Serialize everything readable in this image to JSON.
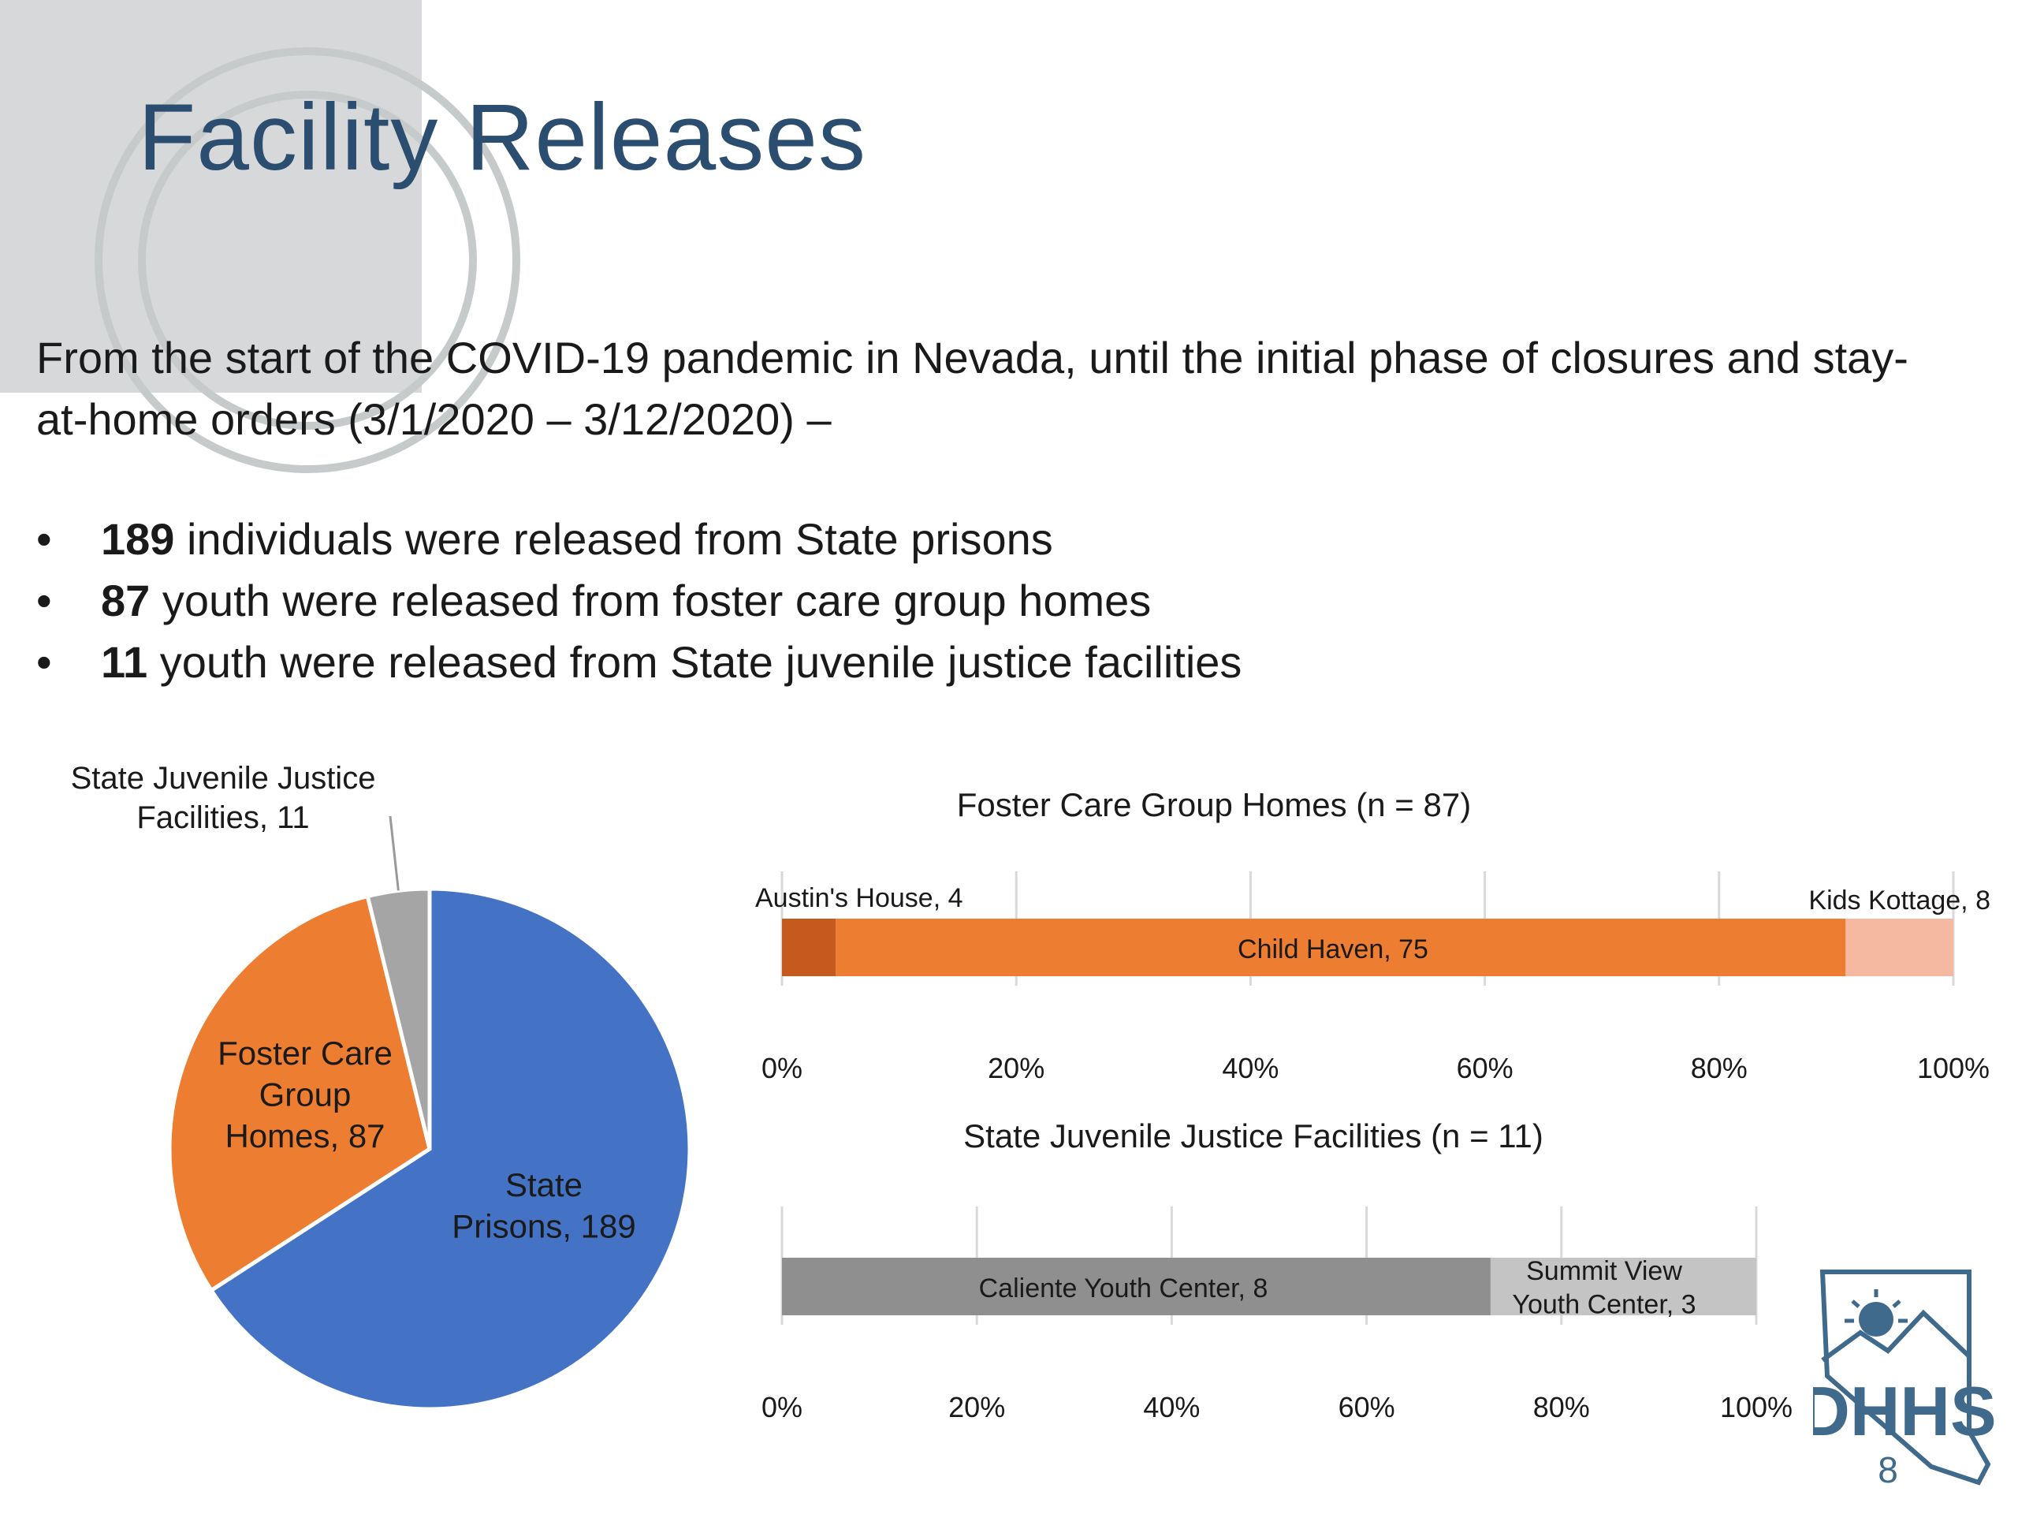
{
  "slide": {
    "title": "Facility Releases",
    "intro": "From the start of the COVID-19 pandemic in Nevada, until the initial phase of closures and stay-at-home orders (3/1/2020 – 3/12/2020) –",
    "bullets": [
      {
        "number": "189",
        "text": " individuals were released from State prisons"
      },
      {
        "number": "87",
        "text": " youth were released from foster care group homes"
      },
      {
        "number": "11",
        "text": " youth were released from State juvenile justice facilities"
      }
    ],
    "page_number": "8",
    "logo_text": "DHHS",
    "colors": {
      "title": "#2b4d6f",
      "logo": "#3f6a8c"
    }
  },
  "chart_data": [
    {
      "type": "pie",
      "slices": [
        {
          "label": "State Prisons, 189",
          "value": 189,
          "color": "#4472c4"
        },
        {
          "label": "Foster Care Group Homes, 87",
          "value": 87,
          "color": "#ed7d31"
        },
        {
          "label": "State Juvenile Justice Facilities, 11",
          "value": 11,
          "color": "#a5a5a5"
        }
      ]
    },
    {
      "type": "bar",
      "orientation": "horizontal",
      "stacked": "percent",
      "title": "Foster Care Group Homes (n = 87)",
      "series": [
        {
          "label": "Austin's House, 4",
          "value": 4,
          "color": "#c55a1e"
        },
        {
          "label": "Child Haven, 75",
          "value": 75,
          "color": "#ed7d31"
        },
        {
          "label": "Kids Kottage, 8",
          "value": 8,
          "color": "#f4b9a0"
        }
      ],
      "xlim": [
        0,
        100
      ],
      "ticks": [
        "0%",
        "20%",
        "40%",
        "60%",
        "80%",
        "100%"
      ],
      "grid": true
    },
    {
      "type": "bar",
      "orientation": "horizontal",
      "stacked": "percent",
      "title": "State Juvenile Justice Facilities (n = 11)",
      "series": [
        {
          "label": "Caliente Youth Center, 8",
          "value": 8,
          "color": "#8f8f8f"
        },
        {
          "label": "Summit View Youth Center, 3",
          "value": 3,
          "color": "#c4c4c4"
        }
      ],
      "xlim": [
        0,
        100
      ],
      "ticks": [
        "0%",
        "20%",
        "40%",
        "60%",
        "80%",
        "100%"
      ],
      "grid": true
    }
  ]
}
